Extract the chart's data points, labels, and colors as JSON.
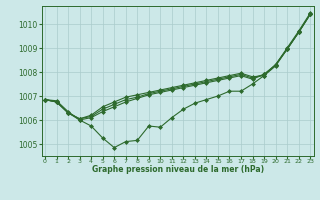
{
  "xlabel": "Graphe pression niveau de la mer (hPa)",
  "x": [
    0,
    1,
    2,
    3,
    4,
    5,
    6,
    7,
    8,
    9,
    10,
    11,
    12,
    13,
    14,
    15,
    16,
    17,
    18,
    19,
    20,
    21,
    22,
    23
  ],
  "line1": [
    1006.85,
    1006.8,
    1006.35,
    1006.0,
    1005.75,
    1005.25,
    1004.85,
    1005.1,
    1005.15,
    1005.75,
    1005.7,
    1006.1,
    1006.45,
    1006.7,
    1006.85,
    1007.0,
    1007.2,
    1007.2,
    1007.5,
    1007.85,
    1008.3,
    1009.0,
    1009.7,
    1010.45
  ],
  "line2": [
    1006.85,
    1006.75,
    1006.3,
    1006.05,
    1006.2,
    1006.55,
    1006.75,
    1006.95,
    1007.05,
    1007.15,
    1007.25,
    1007.35,
    1007.45,
    1007.55,
    1007.65,
    1007.75,
    1007.85,
    1007.95,
    1007.8,
    1007.85,
    1008.25,
    1008.95,
    1009.65,
    1010.4
  ],
  "line3": [
    1006.85,
    1006.75,
    1006.3,
    1006.05,
    1006.15,
    1006.45,
    1006.65,
    1006.85,
    1006.95,
    1007.1,
    1007.2,
    1007.3,
    1007.4,
    1007.5,
    1007.6,
    1007.7,
    1007.8,
    1007.9,
    1007.75,
    1007.9,
    1008.3,
    1008.95,
    1009.65,
    1010.4
  ],
  "line4": [
    1006.85,
    1006.75,
    1006.3,
    1006.0,
    1006.1,
    1006.35,
    1006.55,
    1006.75,
    1006.9,
    1007.05,
    1007.15,
    1007.25,
    1007.35,
    1007.45,
    1007.55,
    1007.65,
    1007.75,
    1007.85,
    1007.7,
    1007.9,
    1008.3,
    1008.95,
    1009.65,
    1010.4
  ],
  "line_color": "#2d6a2d",
  "bg_color": "#cce8e8",
  "grid_color": "#aacccc",
  "ylim": [
    1004.5,
    1010.75
  ],
  "yticks": [
    1005,
    1006,
    1007,
    1008,
    1009,
    1010
  ],
  "xticks": [
    0,
    1,
    2,
    3,
    4,
    5,
    6,
    7,
    8,
    9,
    10,
    11,
    12,
    13,
    14,
    15,
    16,
    17,
    18,
    19,
    20,
    21,
    22,
    23
  ]
}
